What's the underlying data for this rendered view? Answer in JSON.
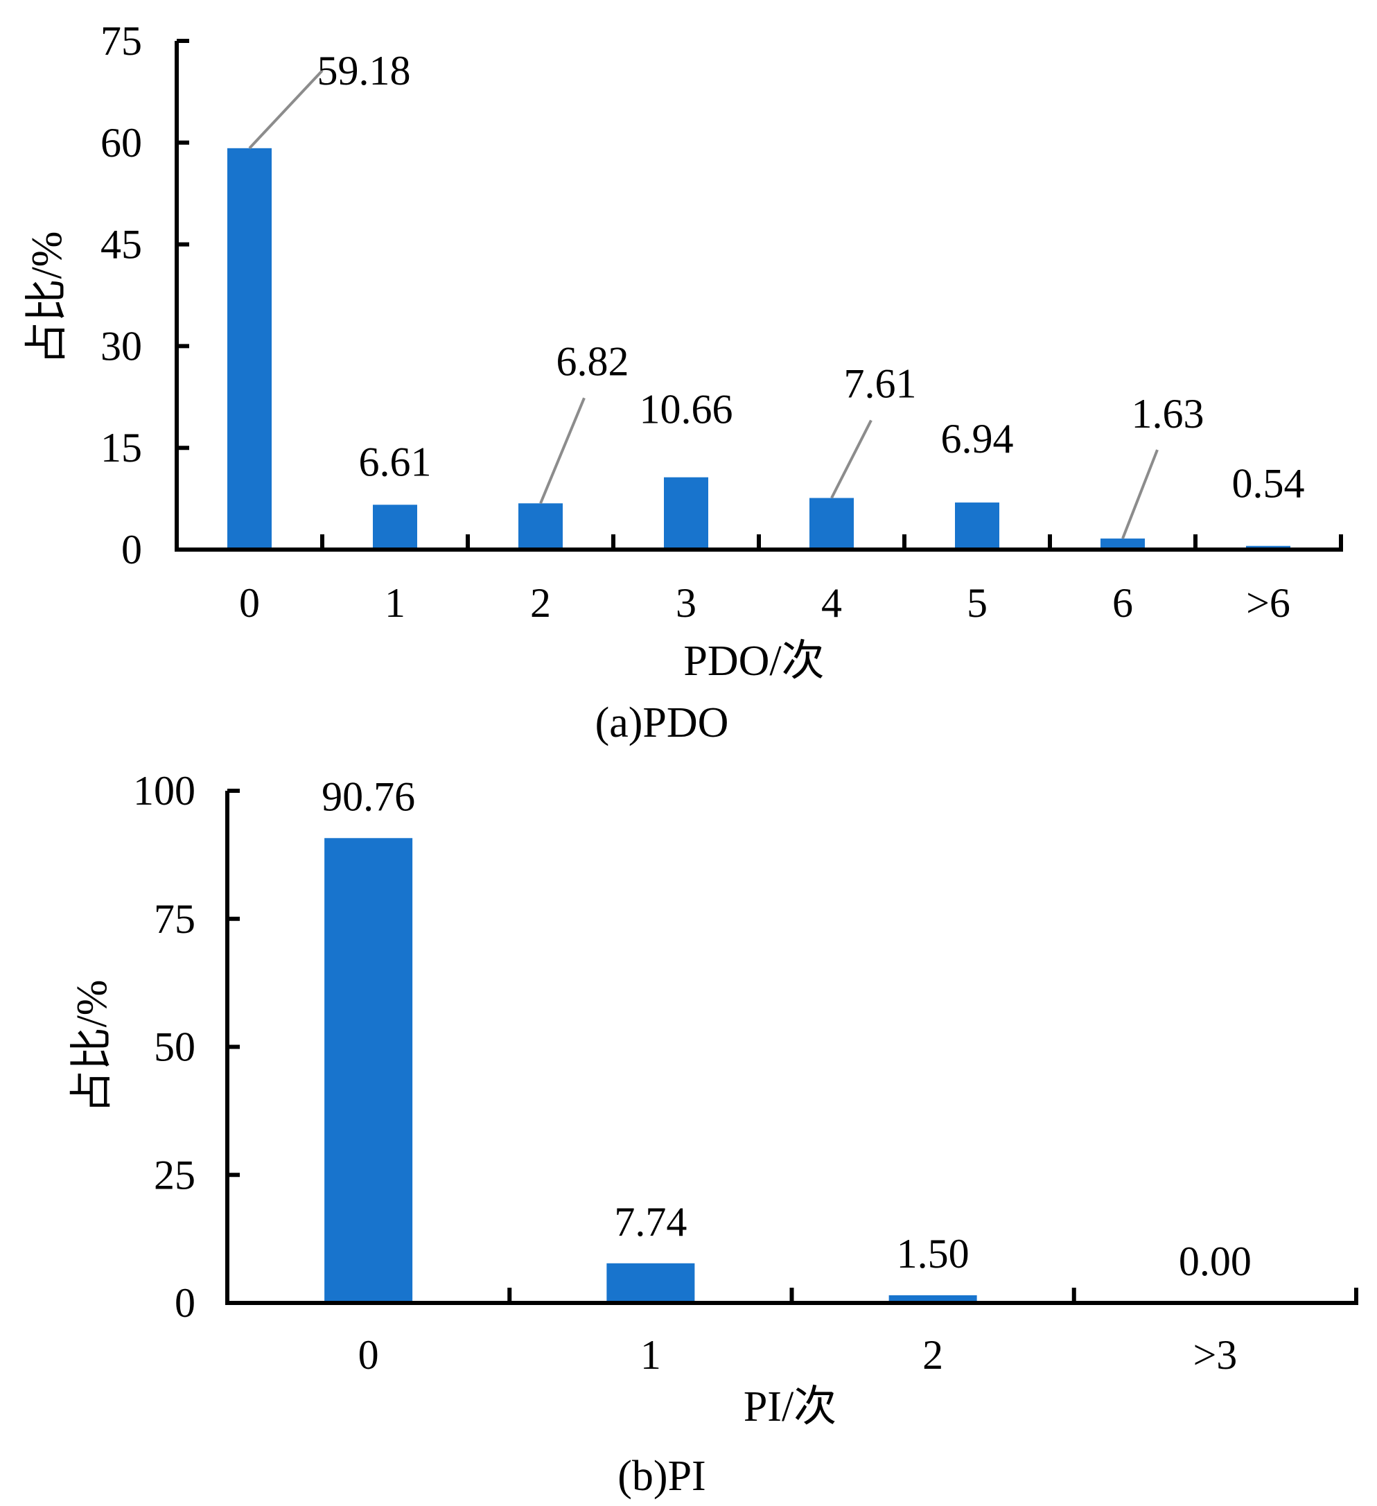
{
  "colors": {
    "bar": "#1874cd",
    "axis": "#000000",
    "leader": "#8c8c8c"
  },
  "chart_data": [
    {
      "type": "bar",
      "id": "pdo",
      "caption": "(a)PDO",
      "xlabel": "PDO/次",
      "ylabel": "占比/%",
      "categories": [
        "0",
        "1",
        "2",
        "3",
        "4",
        "5",
        "6",
        ">6"
      ],
      "values": [
        59.18,
        6.61,
        6.82,
        10.66,
        7.61,
        6.94,
        1.63,
        0.54
      ],
      "data_labels": [
        "59.18",
        "6.61",
        "6.82",
        "10.66",
        "7.61",
        "6.94",
        "1.63",
        "0.54"
      ],
      "leader_lines": [
        true,
        false,
        true,
        false,
        true,
        false,
        true,
        false
      ],
      "ylim": [
        0,
        75
      ],
      "yticks": [
        "0",
        "15",
        "30",
        "45",
        "60",
        "75"
      ],
      "grid": false,
      "legend": "none"
    },
    {
      "type": "bar",
      "id": "pi",
      "caption": "(b)PI",
      "xlabel": "PI/次",
      "ylabel": "占比/%",
      "categories": [
        "0",
        "1",
        "2",
        ">3"
      ],
      "values": [
        90.76,
        7.74,
        1.5,
        0.0
      ],
      "data_labels": [
        "90.76",
        "7.74",
        "1.50",
        "0.00"
      ],
      "leader_lines": [
        false,
        false,
        false,
        false
      ],
      "ylim": [
        0,
        100
      ],
      "yticks": [
        "0",
        "25",
        "50",
        "75",
        "100"
      ],
      "grid": false,
      "legend": "none"
    }
  ]
}
